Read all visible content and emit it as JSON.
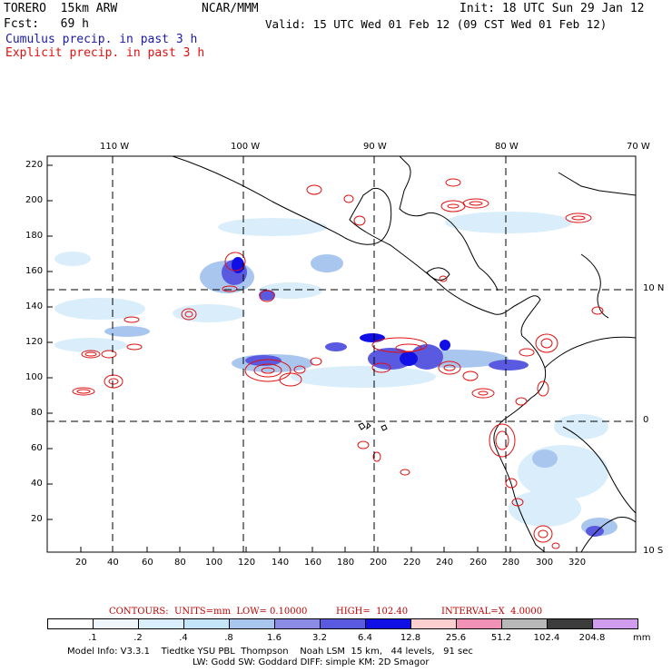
{
  "header": {
    "model": "TORERO  15km ARW",
    "center": "NCAR/MMM",
    "init": "Init: 18 UTC Sun 29 Jan 12",
    "fcst": "Fcst:   69 h",
    "valid": "Valid: 15 UTC Wed 01 Feb 12 (09 CST Wed 01 Feb 12)",
    "cumulus_label": "Cumulus precip. in past 3 h",
    "explicit_label": "Explicit precip. in past 3 h"
  },
  "colors": {
    "cumulus": "#1a1aa6",
    "explicit": "#e01010",
    "grid": "#000000"
  },
  "map": {
    "top_lon_labels": [
      "110 W",
      "100 W",
      "90 W",
      "80 W",
      "70 W"
    ],
    "right_lat_labels": [
      "10 N",
      "0",
      "10 S"
    ],
    "y_ticks": [
      "220",
      "200",
      "180",
      "160",
      "140",
      "120",
      "100",
      "80",
      "60",
      "40",
      "20"
    ],
    "x_ticks": [
      "20",
      "40",
      "60",
      "80",
      "100",
      "120",
      "140",
      "160",
      "180",
      "200",
      "220",
      "240",
      "260",
      "280",
      "300",
      "320"
    ]
  },
  "legend": {
    "contours": "CONTOURS:  UNITS=mm  LOW= 0.10000",
    "high": "HIGH=  102.40",
    "interval": "INTERVAL=X  4.0000",
    "units": "mm",
    "levels": [
      ".1",
      ".2",
      ".4",
      ".8",
      "1.6",
      "3.2",
      "6.4",
      "12.8",
      "25.6",
      "51.2",
      "102.4",
      "204.8"
    ],
    "fills": [
      "#ffffff",
      "#eef6fb",
      "#d9eefa",
      "#c4e4f7",
      "#a9c6ef",
      "#8c8ce6",
      "#5a5ae0",
      "#1010e6",
      "#fbcfcf",
      "#f291b6",
      "#b8b8b8",
      "#3c3c3c",
      "#d29cee"
    ]
  },
  "footer": {
    "line1": "Model Info: V3.3.1    Tiedtke YSU PBL  Thompson    Noah LSM  15 km,   44 levels,   91 sec",
    "line2": "LW: Godd SW: Goddard DIFF: simple KM: 2D Smagor"
  }
}
